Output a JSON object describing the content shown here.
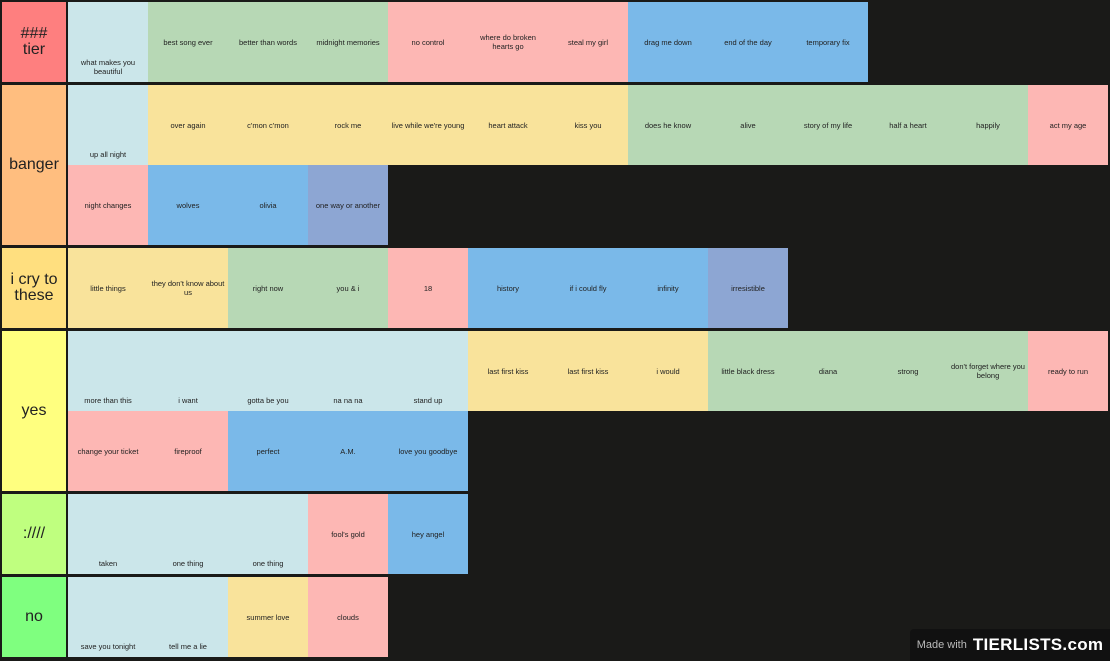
{
  "colors": {
    "c_blue": "#cbe6ea",
    "c_green": "#b7d8b5",
    "c_red": "#fdb7b4",
    "c_sky": "#7ab9e9",
    "c_yellow": "#f9e39b",
    "c_purple": "#8da6d3"
  },
  "tiers": [
    {
      "label": "###\ntier",
      "color": "#fe7f7f",
      "rows": 1,
      "items": [
        {
          "text": "what makes you beautiful",
          "color": "#cbe6ea",
          "pos": "bottom"
        },
        {
          "text": "best song ever",
          "color": "#b7d8b5"
        },
        {
          "text": "better than words",
          "color": "#b7d8b5"
        },
        {
          "text": "midnight memories",
          "color": "#b7d8b5"
        },
        {
          "text": "no control",
          "color": "#fdb7b4"
        },
        {
          "text": "where do broken hearts go",
          "color": "#fdb7b4"
        },
        {
          "text": "steal my girl",
          "color": "#fdb7b4"
        },
        {
          "text": "drag me down",
          "color": "#7ab9e9"
        },
        {
          "text": "end of the day",
          "color": "#7ab9e9"
        },
        {
          "text": "temporary fix",
          "color": "#7ab9e9"
        }
      ]
    },
    {
      "label": "banger",
      "color": "#ffbe7f",
      "rows": 2,
      "items": [
        {
          "text": "up all night",
          "color": "#cbe6ea",
          "pos": "bottom"
        },
        {
          "text": "over again",
          "color": "#f9e39b"
        },
        {
          "text": "c'mon c'mon",
          "color": "#f9e39b"
        },
        {
          "text": "rock me",
          "color": "#f9e39b"
        },
        {
          "text": "live while we're young",
          "color": "#f9e39b"
        },
        {
          "text": "heart attack",
          "color": "#f9e39b"
        },
        {
          "text": "kiss you",
          "color": "#f9e39b"
        },
        {
          "text": "does he know",
          "color": "#b7d8b5"
        },
        {
          "text": "alive",
          "color": "#b7d8b5"
        },
        {
          "text": "story of my life",
          "color": "#b7d8b5"
        },
        {
          "text": "half a heart",
          "color": "#b7d8b5"
        },
        {
          "text": "happily",
          "color": "#b7d8b5"
        },
        {
          "text": "act my age",
          "color": "#fdb7b4"
        },
        {
          "text": "night changes",
          "color": "#fdb7b4"
        },
        {
          "text": "wolves",
          "color": "#7ab9e9"
        },
        {
          "text": "olivia",
          "color": "#7ab9e9"
        },
        {
          "text": "one way or another",
          "color": "#8da6d3"
        }
      ]
    },
    {
      "label": "i cry to\nthese",
      "color": "#ffdf7f",
      "rows": 1,
      "items": [
        {
          "text": "little things",
          "color": "#f9e39b"
        },
        {
          "text": "they don't know about us",
          "color": "#f9e39b"
        },
        {
          "text": "right now",
          "color": "#b7d8b5"
        },
        {
          "text": "you & i",
          "color": "#b7d8b5"
        },
        {
          "text": "18",
          "color": "#fdb7b4"
        },
        {
          "text": "history",
          "color": "#7ab9e9"
        },
        {
          "text": "if i could fly",
          "color": "#7ab9e9"
        },
        {
          "text": "infinity",
          "color": "#7ab9e9"
        },
        {
          "text": "irresistible",
          "color": "#8da6d3"
        }
      ]
    },
    {
      "label": "yes",
      "color": "#ffff7f",
      "rows": 2,
      "items": [
        {
          "text": "more than this",
          "color": "#cbe6ea",
          "pos": "bottom"
        },
        {
          "text": "i want",
          "color": "#cbe6ea",
          "pos": "bottom"
        },
        {
          "text": "gotta be you",
          "color": "#cbe6ea",
          "pos": "bottom"
        },
        {
          "text": "na na na",
          "color": "#cbe6ea",
          "pos": "bottom"
        },
        {
          "text": "stand up",
          "color": "#cbe6ea",
          "pos": "bottom"
        },
        {
          "text": "last first kiss",
          "color": "#f9e39b"
        },
        {
          "text": "last first kiss",
          "color": "#f9e39b"
        },
        {
          "text": "i would",
          "color": "#f9e39b"
        },
        {
          "text": "little black dress",
          "color": "#b7d8b5"
        },
        {
          "text": "diana",
          "color": "#b7d8b5"
        },
        {
          "text": "strong",
          "color": "#b7d8b5"
        },
        {
          "text": "don't forget where you belong",
          "color": "#b7d8b5"
        },
        {
          "text": "ready to run",
          "color": "#fdb7b4"
        },
        {
          "text": "change your ticket",
          "color": "#fdb7b4"
        },
        {
          "text": "fireproof",
          "color": "#fdb7b4"
        },
        {
          "text": "perfect",
          "color": "#7ab9e9"
        },
        {
          "text": "A.M.",
          "color": "#7ab9e9"
        },
        {
          "text": "love you goodbye",
          "color": "#7ab9e9"
        }
      ]
    },
    {
      "label": "://///",
      "color": "#bfff7f",
      "rows": 1,
      "items": [
        {
          "text": "taken",
          "color": "#cbe6ea",
          "pos": "bottom"
        },
        {
          "text": "one thing",
          "color": "#cbe6ea",
          "pos": "bottom"
        },
        {
          "text": "one thing",
          "color": "#cbe6ea",
          "pos": "bottom"
        },
        {
          "text": "fool's gold",
          "color": "#fdb7b4"
        },
        {
          "text": "hey angel",
          "color": "#7ab9e9"
        }
      ]
    },
    {
      "label": "no",
      "color": "#7fff7f",
      "rows": 1,
      "items": [
        {
          "text": "save you tonight",
          "color": "#cbe6ea",
          "pos": "bottom"
        },
        {
          "text": "tell me a lie",
          "color": "#cbe6ea",
          "pos": "bottom"
        },
        {
          "text": "summer love",
          "color": "#f9e39b"
        },
        {
          "text": "clouds",
          "color": "#fdb7b4"
        }
      ]
    }
  ],
  "watermark": {
    "made_with": "Made with",
    "logo": "TIERLISTS.com"
  }
}
